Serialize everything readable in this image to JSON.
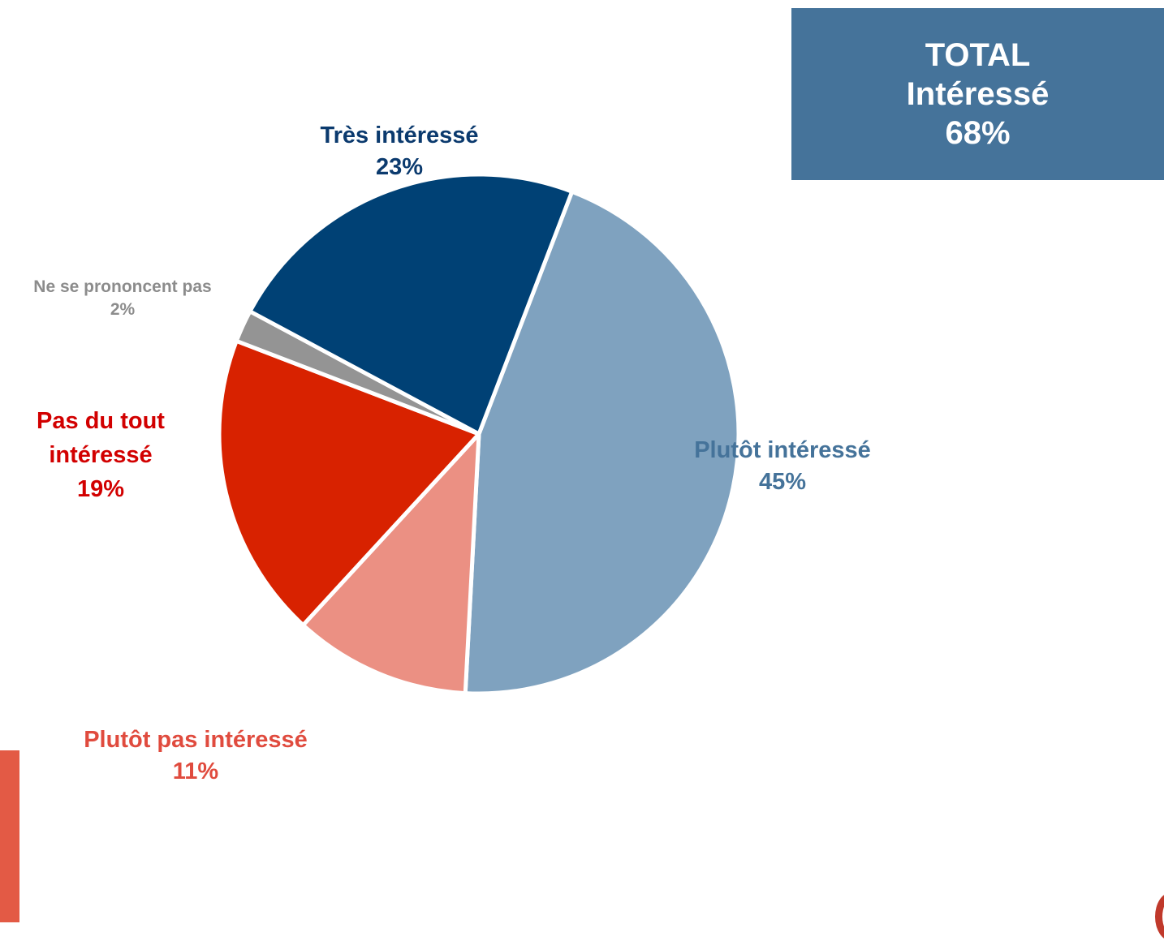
{
  "total_box": {
    "line1": "TOTAL",
    "line2": "Intéressé",
    "line3": "68%",
    "color": "#45739a"
  },
  "chart_data": {
    "type": "pie",
    "start_angle_deg": 21,
    "direction": "clockwise",
    "slices": [
      {
        "name": "Plutôt intéressé",
        "value": 45,
        "label": "45%",
        "color": "#7fa2bf",
        "label_color": "#45739a"
      },
      {
        "name": "Plutôt pas intéressé",
        "value": 11,
        "label": "11%",
        "color": "#eb9083",
        "label_color": "#e04b3e"
      },
      {
        "name": "Pas du tout intéressé",
        "value": 19,
        "label": "19%",
        "color": "#d82200",
        "label_color": "#d20000"
      },
      {
        "name": "Ne se prononcent pas",
        "value": 2,
        "label": "2%",
        "color": "#949494",
        "label_color": "#8c8c8c"
      },
      {
        "name": "Très intéressé",
        "value": 23,
        "label": "23%",
        "color": "#004175",
        "label_color": "#0b3a6e"
      }
    ]
  },
  "labels": {
    "tres": {
      "line1": "Très intéressé",
      "line2": "23%"
    },
    "plutot": {
      "line1": "Plutôt intéressé",
      "line2": "45%"
    },
    "plutot_pas": {
      "line1": "Plutôt pas intéressé",
      "line2": "11%"
    },
    "pas_du_tout": {
      "line1": "Pas du tout",
      "line2": "intéressé",
      "line3": "19%"
    },
    "nsp": {
      "line1": "Ne se prononcent pas",
      "line2": "2%"
    }
  }
}
